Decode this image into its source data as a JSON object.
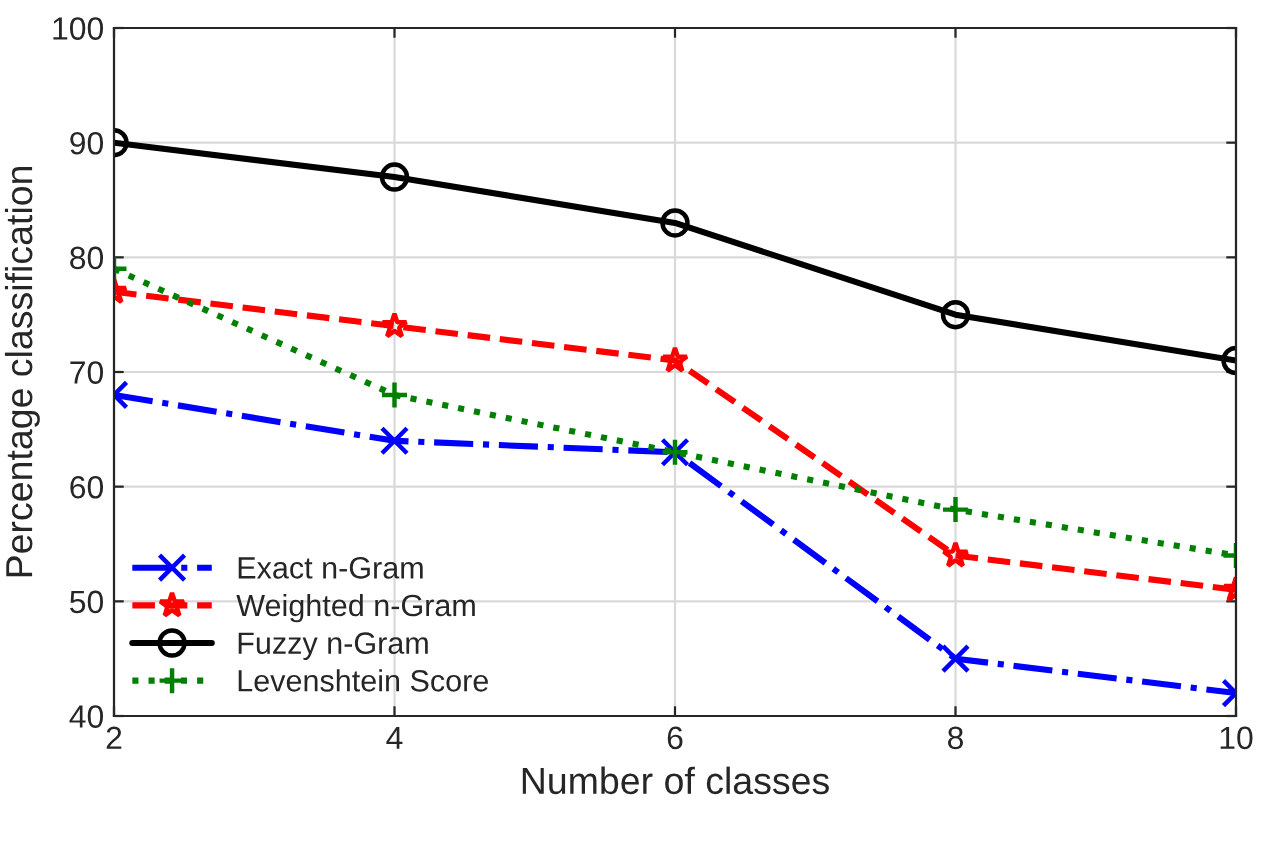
{
  "chart_data": {
    "type": "line",
    "xlabel": "Number of classes",
    "ylabel": "Percentage classification",
    "x": [
      2,
      4,
      6,
      8,
      10
    ],
    "series": [
      {
        "name": "Exact n-Gram",
        "color": "#0000ff",
        "values": [
          68,
          64,
          63,
          45,
          42
        ],
        "marker": "cross",
        "line_style": "dashdot"
      },
      {
        "name": "Weighted n-Gram",
        "color": "#ff0000",
        "values": [
          77,
          74,
          71,
          54,
          51
        ],
        "marker": "star",
        "line_style": "dashed"
      },
      {
        "name": "Fuzzy n-Gram",
        "color": "#000000",
        "values": [
          90,
          87,
          83,
          75,
          71
        ],
        "marker": "circle",
        "line_style": "solid"
      },
      {
        "name": "Levenshtein Score",
        "color": "#008000",
        "values": [
          79,
          68,
          63,
          58,
          54
        ],
        "marker": "plus",
        "line_style": "dotted"
      }
    ],
    "xlim": [
      2,
      10
    ],
    "xticks": [
      2,
      4,
      6,
      8,
      10
    ],
    "ylim": [
      40,
      100
    ],
    "yticks": [
      40,
      50,
      60,
      70,
      80,
      90,
      100
    ],
    "grid": true,
    "legend": "bottom left"
  }
}
